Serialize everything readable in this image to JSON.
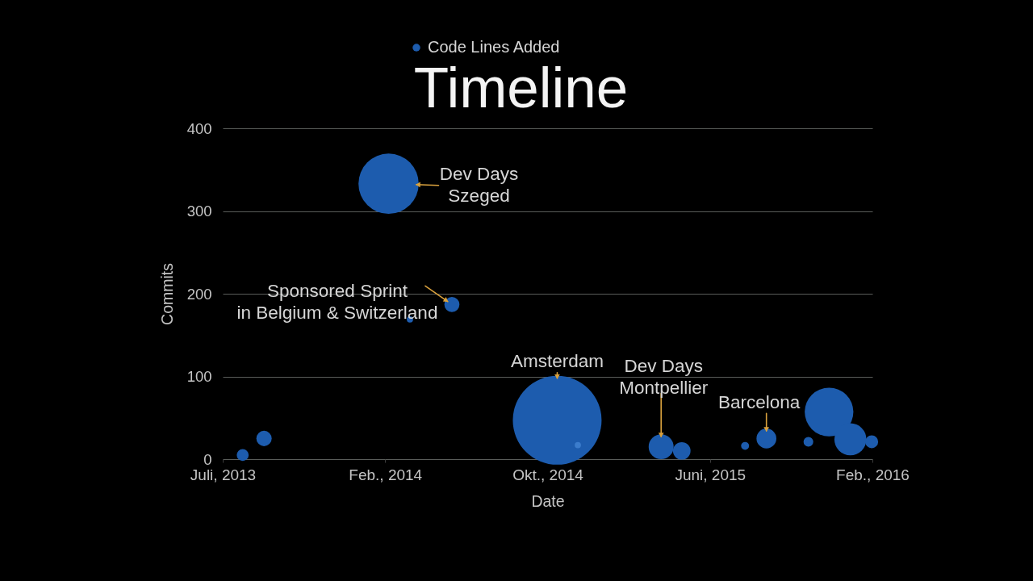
{
  "chart_data": {
    "type": "bubble",
    "title": "Timeline",
    "xlabel": "Date",
    "ylabel": "Commits",
    "x": [
      "2013-08-01",
      "2013-09-01",
      "2014-03-01",
      "2014-04-01",
      "2014-06-01",
      "2014-11-01",
      "2014-12-01",
      "2015-04-01",
      "2015-05-01",
      "2015-08-01",
      "2015-09-01",
      "2015-11-01",
      "2015-12-01",
      "2016-01-01",
      "2016-02-01"
    ],
    "series": [
      {
        "name": "Code Lines Added",
        "color": "#1d5cae",
        "colors": [
          "#1d5cae",
          "#1d5cae",
          "#1d5cae",
          "#1d5cae",
          "#1d5cae",
          "#1d5cae",
          "#3b7ccc",
          "#1d5cae",
          "#1d5cae",
          "#1d5cae",
          "#1d5cae",
          "#1d5cae",
          "#1d5cae",
          "#1d5cae",
          "#1d5cae"
        ],
        "values": [
          5,
          25,
          333,
          169,
          187,
          47,
          17,
          15,
          10,
          16,
          25,
          21,
          57,
          24,
          21
        ],
        "sizes": [
          0.018,
          0.03,
          0.46,
          0.005,
          0.029,
          1,
          null,
          0.079,
          0.039,
          0.008,
          0.05,
          0.012,
          0.3,
          0.13,
          0.021
        ]
      }
    ],
    "xlim": [
      "2013-07-03",
      "2016-02-02"
    ],
    "xticks": [
      {
        "value": "2013-07-03",
        "label": "Juli, 2013"
      },
      {
        "value": "2014-02-24",
        "label": "Feb., 2014"
      },
      {
        "value": "2014-10-18",
        "label": "Okt., 2014"
      },
      {
        "value": "2015-06-11",
        "label": "Juni, 2015"
      },
      {
        "value": "2016-02-02",
        "label": "Feb., 2016"
      }
    ],
    "ylim": [
      0,
      400
    ],
    "yticks": [
      0,
      100,
      200,
      300,
      400
    ],
    "grid": "y",
    "legend": "top",
    "annotations": [
      {
        "text": "Dev Days\nSzeged",
        "x": "2014-03-01",
        "y": 333
      },
      {
        "text": "Sponsored Sprint\nin Belgium & Switzerland",
        "x": "2014-06-01",
        "y": 187
      },
      {
        "text": "Amsterdam",
        "x": "2014-11-01",
        "y": 47
      },
      {
        "text": "Dev Days\nMontpellier",
        "x": "2015-04-01",
        "y": 15
      },
      {
        "text": "Barcelona",
        "x": "2015-09-01",
        "y": 25
      }
    ]
  }
}
